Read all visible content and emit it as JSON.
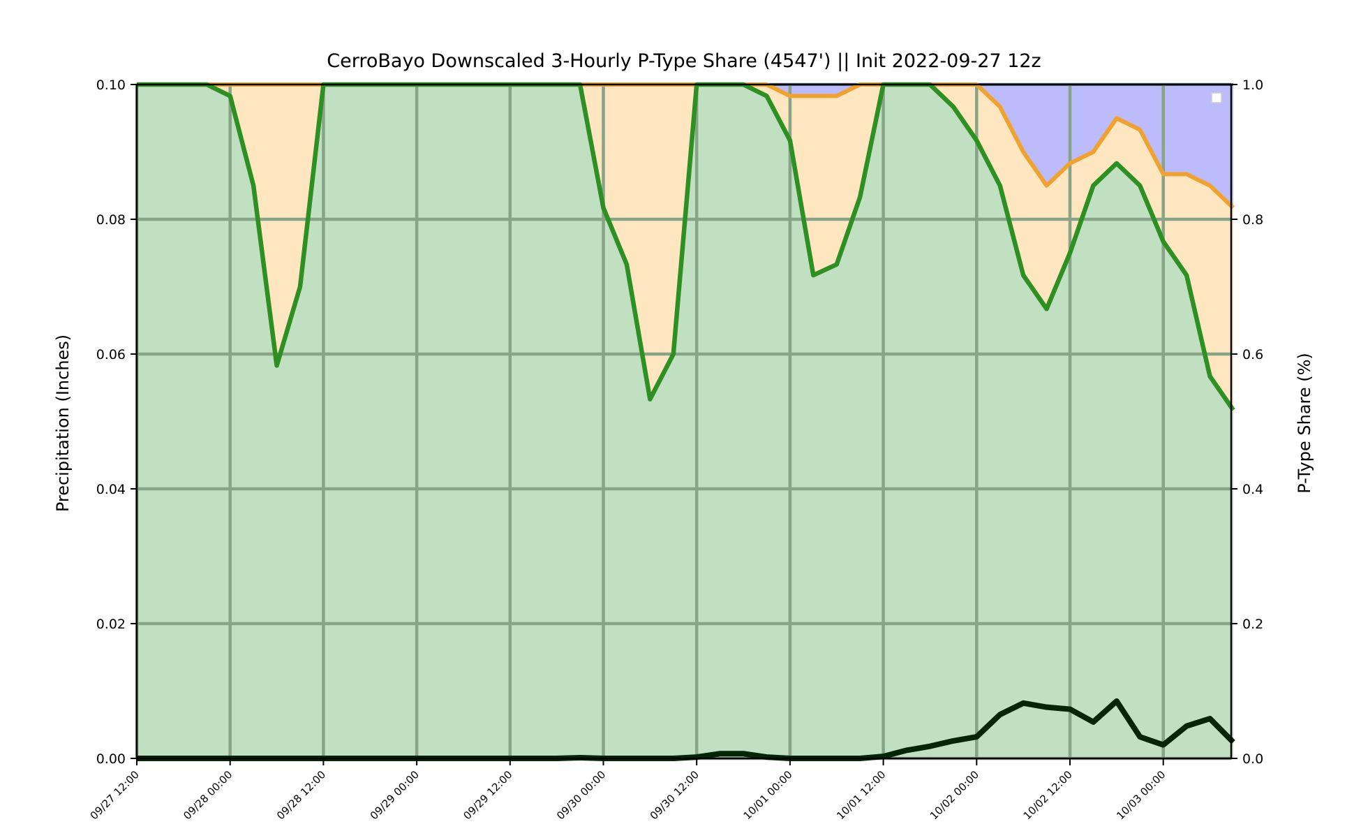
{
  "chart_data": {
    "type": "area",
    "title": "CerroBayo Downscaled 3-Hourly P-Type Share (4547') || Init 2022-09-27 12z",
    "ylabel": "Precipitation (Inches)",
    "y2label": "P-Type Share (%)",
    "ylim": [
      0,
      0.1
    ],
    "y2lim": [
      0,
      1.0
    ],
    "yticks": [
      "0.00",
      "0.02",
      "0.04",
      "0.06",
      "0.08",
      "0.10"
    ],
    "y2ticks": [
      "0.0",
      "0.2",
      "0.4",
      "0.6",
      "0.8",
      "1.0"
    ],
    "xticks": [
      "09/27 12:00",
      "09/28 00:00",
      "09/28 12:00",
      "09/29 00:00",
      "09/29 12:00",
      "09/30 00:00",
      "09/30 12:00",
      "10/01 00:00",
      "10/01 12:00",
      "10/02 00:00",
      "10/02 12:00",
      "10/03 00:00"
    ],
    "x_step_hours": 3,
    "grid": true,
    "legend": "top-right",
    "colors": {
      "rain_fill": "#c1dfc1",
      "mix_fill": "#fde6c0",
      "snow_fill": "#bcbcfc",
      "rain_line": "#2e8f22",
      "mix_line": "#f0a22e",
      "snow_line": "#0000c0",
      "precip_line": "#052605",
      "grid": "#87a487"
    },
    "series": [
      {
        "values": [
          1.0,
          1.0,
          1.0,
          1.0,
          0.983,
          0.85,
          0.583,
          0.7,
          1.0,
          1.0,
          1.0,
          1.0,
          1.0,
          1.0,
          1.0,
          1.0,
          1.0,
          1.0,
          1.0,
          1.0,
          0.817,
          0.733,
          0.533,
          0.6,
          1.0,
          1.0,
          1.0,
          0.983,
          0.917,
          0.717,
          0.733,
          0.833,
          1.0,
          1.0,
          1.0,
          0.967,
          0.917,
          0.85,
          0.717,
          0.667,
          0.75,
          0.85,
          0.883,
          0.85,
          0.767,
          0.717,
          0.567,
          0.517
        ]
      },
      {
        "values": [
          1.0,
          1.0,
          1.0,
          1.0,
          1.0,
          1.0,
          1.0,
          1.0,
          1.0,
          1.0,
          1.0,
          1.0,
          1.0,
          1.0,
          1.0,
          1.0,
          1.0,
          1.0,
          1.0,
          1.0,
          1.0,
          1.0,
          1.0,
          1.0,
          1.0,
          1.0,
          1.0,
          1.0,
          0.983,
          0.983,
          0.983,
          1.0,
          1.0,
          1.0,
          1.0,
          1.0,
          1.0,
          0.967,
          0.9,
          0.85,
          0.883,
          0.9,
          0.95,
          0.933,
          0.867,
          0.867,
          0.85,
          0.817
        ]
      },
      {
        "values": [
          0,
          0,
          0,
          0,
          0,
          0,
          0,
          0,
          0,
          0,
          0,
          0,
          0,
          0,
          0,
          0,
          0,
          0,
          0,
          0.0001,
          0,
          0,
          0,
          0,
          0.0002,
          0.0007,
          0.0007,
          0.0002,
          0,
          0,
          0,
          0,
          0.0003,
          0.0012,
          0.0018,
          0.0026,
          0.0032,
          0.0065,
          0.0082,
          0.0076,
          0.0073,
          0.0054,
          0.0085,
          0.0032,
          0.002,
          0.0048,
          0.0059,
          0.0024
        ]
      }
    ]
  }
}
